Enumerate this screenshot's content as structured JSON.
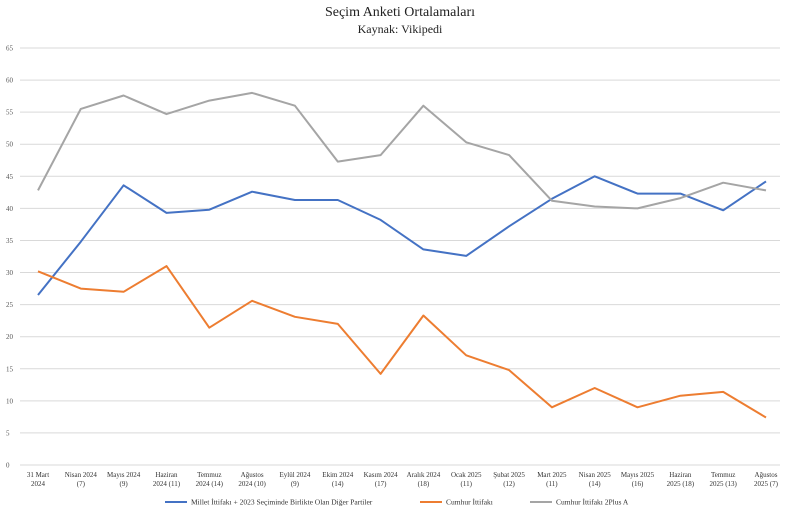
{
  "chart_data": {
    "type": "line",
    "title": "Seçim Anketi Ortalamaları",
    "subtitle": "Kaynak: Vikipedi",
    "xlabel": "",
    "ylabel": "",
    "y_tick_labels": [
      "0",
      "5",
      "10",
      "15",
      "20",
      "25",
      "30",
      "35",
      "40",
      "45",
      "50",
      "55",
      "60",
      "65"
    ],
    "ylim": [
      0,
      65
    ],
    "grid": true,
    "legend_position": "bottom",
    "categories": [
      [
        "31 Mart",
        "2024"
      ],
      [
        "Nisan 2024",
        "(7)"
      ],
      [
        "Mayıs 2024",
        "(9)"
      ],
      [
        "Haziran",
        "2024 (11)"
      ],
      [
        "Temmuz",
        "2024 (14)"
      ],
      [
        "Ağustos",
        "2024 (10)"
      ],
      [
        "Eylül 2024",
        "(9)"
      ],
      [
        "Ekim 2024",
        "(14)"
      ],
      [
        "Kasım 2024",
        "(17)"
      ],
      [
        "Aralık 2024",
        "(18)"
      ],
      [
        "Ocak 2025",
        "(11)"
      ],
      [
        "Şubat 2025",
        "(12)"
      ],
      [
        "Mart 2025",
        "(11)"
      ],
      [
        "Nisan 2025",
        "(14)"
      ],
      [
        "Mayıs 2025",
        "(16)"
      ],
      [
        "Haziran",
        "2025 (18)"
      ],
      [
        "Temmuz",
        "2025 (13)"
      ],
      [
        "Ağustos",
        "2025 (7)"
      ]
    ],
    "series": [
      {
        "name": "Millet İttifakı + 2023 Seçiminde Birlikte Olan Diğer Partiler",
        "color": "#4472C4",
        "values": [
          26.5,
          34.8,
          43.6,
          39.3,
          39.8,
          42.6,
          41.3,
          41.3,
          38.2,
          33.6,
          32.6,
          37.2,
          41.5,
          45.0,
          42.3,
          42.3,
          39.7,
          44.2
        ]
      },
      {
        "name": "Cumhur İttifakı",
        "color": "#ED7D31",
        "values": [
          30.2,
          27.5,
          27.0,
          31.0,
          21.4,
          25.6,
          23.1,
          22.0,
          14.2,
          23.3,
          17.1,
          14.8,
          9.0,
          12.0,
          9.0,
          10.8,
          11.4,
          7.4
        ]
      },
      {
        "name": "Cumhur İttifakı 2Plus A",
        "color": "#A5A5A5",
        "values": [
          42.8,
          55.5,
          57.6,
          54.7,
          56.8,
          58.0,
          56.0,
          47.3,
          48.3,
          56.0,
          50.3,
          48.3,
          41.2,
          40.3,
          40.0,
          41.6,
          44.0,
          42.8
        ]
      }
    ]
  }
}
